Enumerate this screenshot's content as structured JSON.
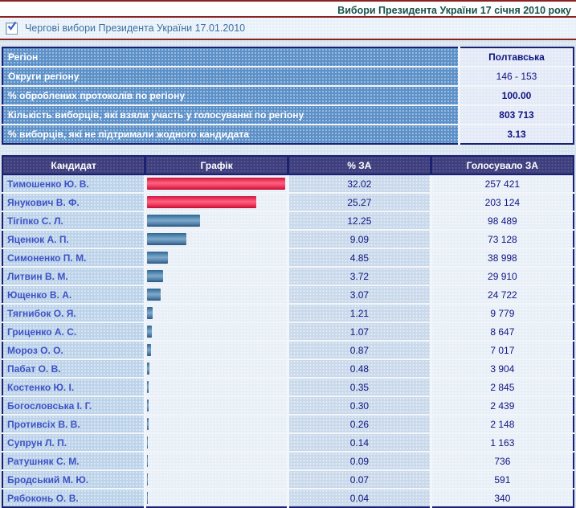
{
  "page_title": "Вибори Президента України 17 січня 2010 року",
  "election_filter": {
    "checked": true,
    "label": "Чергові вибори Президента України 17.01.2010"
  },
  "region_info": {
    "rows": [
      {
        "label": "Регіон",
        "value": "Полтавська",
        "bold": true
      },
      {
        "label": "Округи регіону",
        "value": "146 - 153",
        "bold": false
      },
      {
        "label": "% оброблених протоколів по регіону",
        "value": "100.00",
        "bold": true
      },
      {
        "label": "Кількість виборців, які взяли участь у голосуванні по регіону",
        "value": "803 713",
        "bold": true
      },
      {
        "label": "% виборців, які не підтримали жодного кандидата",
        "value": "3.13",
        "bold": true
      }
    ]
  },
  "results_table": {
    "headers": [
      "Кандидат",
      "Графік",
      "% ЗА",
      "Голосувало ЗА"
    ],
    "max_percent": 32.02,
    "rows": [
      {
        "candidate": "Тимошенко Ю. В.",
        "percent": "32.02",
        "votes": "257 421",
        "bar": "red"
      },
      {
        "candidate": "Янукович В. Ф.",
        "percent": "25.27",
        "votes": "203 124",
        "bar": "red"
      },
      {
        "candidate": "Тігіпко С. Л.",
        "percent": "12.25",
        "votes": "98 489",
        "bar": "blue"
      },
      {
        "candidate": "Яценюк А. П.",
        "percent": "9.09",
        "votes": "73 128",
        "bar": "blue"
      },
      {
        "candidate": "Симоненко П. М.",
        "percent": "4.85",
        "votes": "38 998",
        "bar": "blue"
      },
      {
        "candidate": "Литвин В. М.",
        "percent": "3.72",
        "votes": "29 910",
        "bar": "blue"
      },
      {
        "candidate": "Ющенко В. А.",
        "percent": "3.07",
        "votes": "24 722",
        "bar": "blue"
      },
      {
        "candidate": "Тягнибок О. Я.",
        "percent": "1.21",
        "votes": "9 779",
        "bar": "blue"
      },
      {
        "candidate": "Гриценко А. С.",
        "percent": "1.07",
        "votes": "8 647",
        "bar": "blue"
      },
      {
        "candidate": "Мороз О. О.",
        "percent": "0.87",
        "votes": "7 017",
        "bar": "blue"
      },
      {
        "candidate": "Пабат О. В.",
        "percent": "0.48",
        "votes": "3 904",
        "bar": "blue"
      },
      {
        "candidate": "Костенко Ю. І.",
        "percent": "0.35",
        "votes": "2 845",
        "bar": "blue"
      },
      {
        "candidate": "Богословська І. Г.",
        "percent": "0.30",
        "votes": "2 439",
        "bar": "blue"
      },
      {
        "candidate": "Противсіх В. В.",
        "percent": "0.26",
        "votes": "2 148",
        "bar": "blue"
      },
      {
        "candidate": "Супрун Л. П.",
        "percent": "0.14",
        "votes": "1 163",
        "bar": "blue"
      },
      {
        "candidate": "Ратушняк С. М.",
        "percent": "0.09",
        "votes": "736",
        "bar": "blue"
      },
      {
        "candidate": "Бродський М. Ю.",
        "percent": "0.07",
        "votes": "591",
        "bar": "blue"
      },
      {
        "candidate": "Рябоконь О. В.",
        "percent": "0.04",
        "votes": "340",
        "bar": "blue"
      }
    ]
  },
  "colors": {
    "maroon_rule": "#8a2222",
    "title_text": "#17524a",
    "page_background": "#d8e4ef",
    "info_label_bg": "#5c90c8",
    "info_value_bg": "#e3e9f6",
    "table_border": "#1b2171",
    "header_bg": "#3e3e7e",
    "candidate_cell_bg": "#bdd3ea",
    "candidate_text": "#3d52c6",
    "percent_cell_bg": "#c9d9eb",
    "value_text": "#101480",
    "bar_red": "#f23a5e",
    "bar_blue": "#5886ae"
  }
}
